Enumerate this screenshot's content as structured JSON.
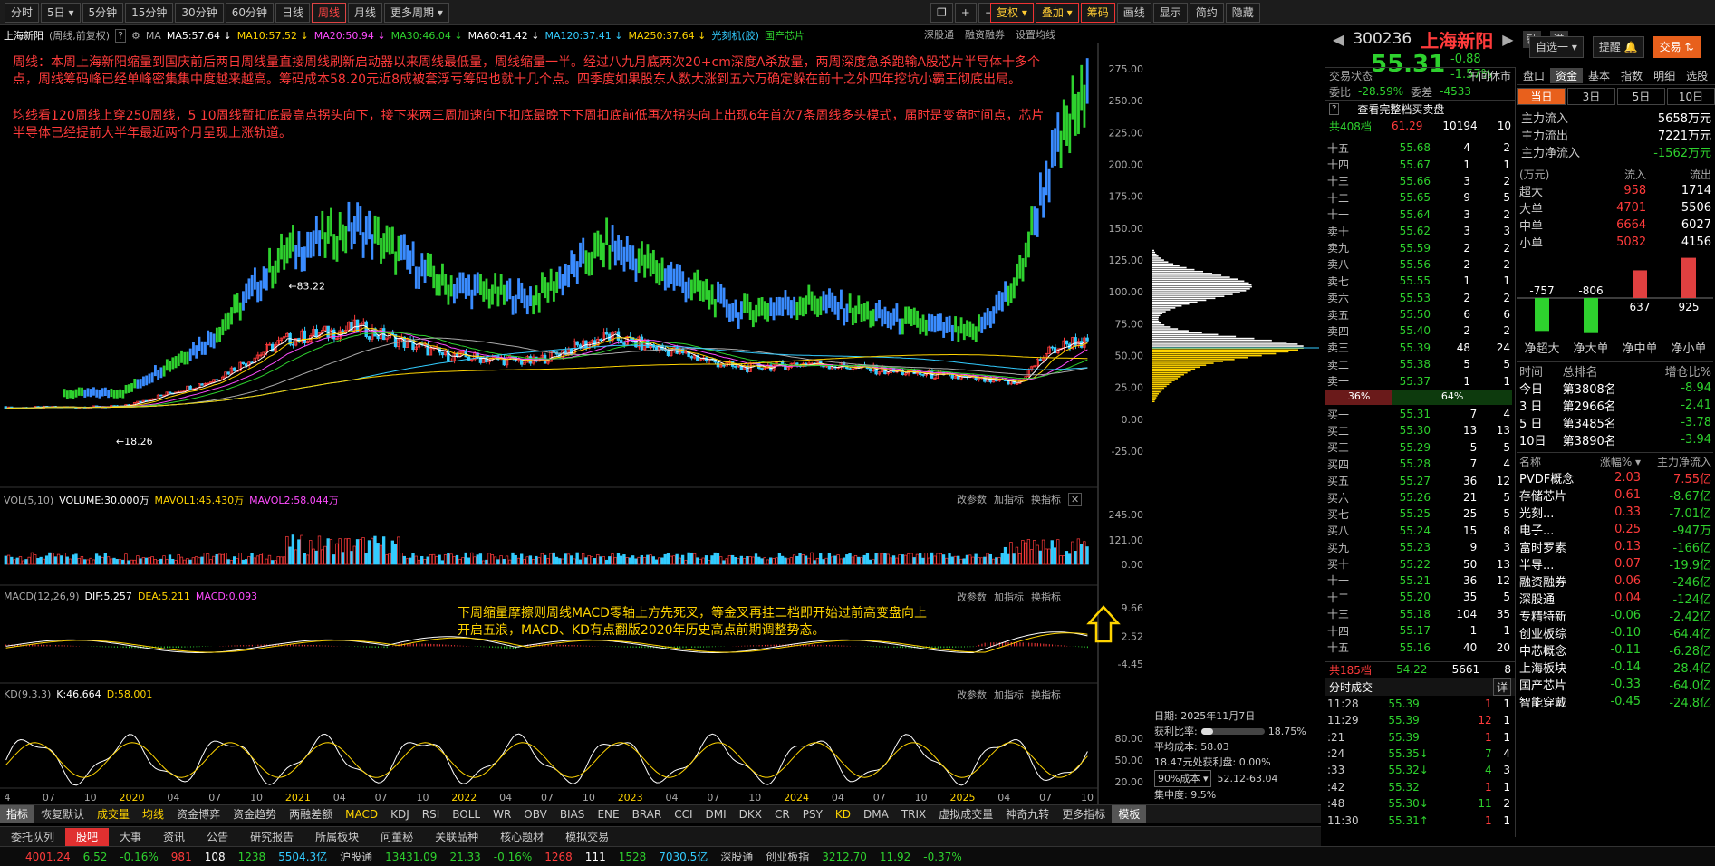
{
  "toolbar": {
    "periods": [
      "分时",
      "5日",
      "5分钟",
      "15分钟",
      "30分钟",
      "60分钟",
      "日线",
      "周线",
      "月线",
      "更多周期"
    ],
    "active_period": "周线",
    "right_buttons": [
      "复权",
      "叠加",
      "筹码",
      "画线",
      "显示",
      "简约",
      "隐藏"
    ]
  },
  "chart_header": {
    "stock": "上海新阳",
    "mode": "(周线,前复权)",
    "ma_label": "MA",
    "ma": [
      {
        "k": "MA5:57.64",
        "c": "#ffffff"
      },
      {
        "k": "MA10:57.52",
        "c": "#ffd400"
      },
      {
        "k": "MA20:50.94",
        "c": "#ff4cff"
      },
      {
        "k": "MA30:46.04",
        "c": "#2ed12e"
      },
      {
        "k": "MA60:41.42",
        "c": "#ffffff"
      },
      {
        "k": "MA120:37.41",
        "c": "#3cf"
      },
      {
        "k": "MA250:37.64",
        "c": "#ffd400"
      }
    ],
    "tags": [
      "光刻机(胶)",
      "国产芯片"
    ],
    "right_tags": [
      "深股通",
      "融资融券",
      "设置均线"
    ]
  },
  "annotation1": "周线：本周上海新阳缩量到国庆前后两日周线量直接周线刷新启动器以来周线最低量，周线缩量一半。经过八九月底两次20+cm深度A杀放量，两周深度急杀跑输A股芯片半导体十多个点，周线筹码峰已经单峰密集集中度越来越高。筹码成本58.20元近8成被套浮亏筹码也就十几个点。四季度如果股东人数大涨到五六万确定躲在前十之外四年挖坑小霸王彻底出局。",
  "annotation2": "均线看120周线上穿250周线，5 10周线暂扣底最高点拐头向下，接下来两三周加速向下扣底最晚下下周扣底前低再次拐头向上出现6年首次7条周线多头模式，届时是变盘时间点，芯片半导体已经提前大半年最近两个月呈现上涨轨道。",
  "annotation3": "下周缩量摩擦则周线MACD零轴上方先死叉，等金叉再挂二档即开始过前高变盘向上开启五浪，MACD、KD有点翻版2020年历史高点前期调整势态。",
  "price_axis": [
    "275.00",
    "250.00",
    "225.00",
    "200.00",
    "175.00",
    "150.00",
    "125.00",
    "100.00",
    "75.00",
    "50.00",
    "25.00",
    "0.00",
    "-25.00"
  ],
  "price_marks": {
    "high": "83.22",
    "low": "18.26"
  },
  "vol": {
    "header": "VOL(5,10)",
    "volume": "VOLUME:30.000万",
    "mavol1": "MAVOL1:45.430万",
    "mavol2": "MAVOL2:58.044万",
    "axis": [
      "245.00",
      "121.00",
      "0.00"
    ],
    "btns": [
      "改参数",
      "加指标",
      "换指标"
    ]
  },
  "macd": {
    "header": "MACD(12,26,9)",
    "dif": "DIF:5.257",
    "dea": "DEA:5.211",
    "macd": "MACD:0.093",
    "axis": [
      "9.66",
      "2.52",
      "-4.45"
    ]
  },
  "kd": {
    "header": "KD(9,3,3)",
    "k": "K:46.664",
    "d": "D:58.001",
    "axis": [
      "80.00",
      "50.00",
      "20.00"
    ]
  },
  "xaxis": [
    "4",
    "07",
    "10",
    "2020",
    "04",
    "07",
    "10",
    "2021",
    "04",
    "07",
    "10",
    "2022",
    "04",
    "07",
    "10",
    "2023",
    "04",
    "07",
    "10",
    "2024",
    "04",
    "07",
    "10",
    "2025",
    "04",
    "07",
    "10"
  ],
  "chip": {
    "date": "日期: 2025年11月7日",
    "ratio_label": "获利比率:",
    "ratio": "18.75%",
    "avg": "平均成本: 58.03",
    "pressure": "18.47元处获利盘: 0.00%",
    "cost_sel": "90%成本",
    "cost_range": "52.12-63.04",
    "conc": "集中度: 9.5%"
  },
  "bottom_tabs": [
    "指标",
    "恢复默认",
    "成交量",
    "均线",
    "资金博弈",
    "资金趋势",
    "两融差额",
    "MACD",
    "KDJ",
    "RSI",
    "BOLL",
    "WR",
    "OBV",
    "BIAS",
    "ENE",
    "BRAR",
    "CCI",
    "DMI",
    "DKX",
    "CR",
    "PSY",
    "KD",
    "DMA",
    "TRIX",
    "虚拟成交量",
    "神奇九转",
    "更多指标",
    "模板"
  ],
  "bottom_tabs2": [
    "委托队列",
    "股吧",
    "大事",
    "资讯",
    "公告",
    "研究报告",
    "所属板块",
    "问董秘",
    "关联品种",
    "核心题材",
    "模拟交易"
  ],
  "status": {
    "a": "4001.24",
    "a2": "6.52",
    "a3": "-0.16%",
    "a4": "981",
    "a5": "108",
    "a6": "1238",
    "a7": "5504.3亿",
    "hgt": "沪股通",
    "b": "13431.09",
    "b2": "21.33",
    "b3": "-0.16%",
    "b4": "1268",
    "b5": "111",
    "b6": "1528",
    "b7": "7030.5亿",
    "sgt": "深股通",
    "c": "创业板指",
    "c2": "3212.70",
    "c3": "11.92",
    "c4": "-0.37%"
  },
  "quote": {
    "code": "300236",
    "name": "上海新阳",
    "badges": [
      "融",
      "港"
    ],
    "price": "55.31",
    "chg": "-0.88",
    "pct": "-1.57%",
    "select_btn": "自选一",
    "remind_btn": "提醒",
    "trade_btn": "交易",
    "state_label": "交易状态",
    "state": "午间休市",
    "wb_label": "委比",
    "wb": "-28.59%",
    "wc_label": "委差",
    "wc": "-4533",
    "all_orders": "查看完整档买卖盘",
    "q408_label": "共408档",
    "q408_p": "61.29",
    "q408_v": "10194",
    "q408_n": "10",
    "sells": [
      [
        "十五",
        "55.68",
        "4",
        "2"
      ],
      [
        "十四",
        "55.67",
        "1",
        "1"
      ],
      [
        "十三",
        "55.66",
        "3",
        "2"
      ],
      [
        "十二",
        "55.65",
        "9",
        "5"
      ],
      [
        "十一",
        "55.64",
        "3",
        "2"
      ],
      [
        "卖十",
        "55.62",
        "3",
        "3"
      ],
      [
        "卖九",
        "55.59",
        "2",
        "2"
      ],
      [
        "卖八",
        "55.56",
        "2",
        "2"
      ],
      [
        "卖七",
        "55.55",
        "1",
        "1"
      ],
      [
        "卖六",
        "55.53",
        "2",
        "2"
      ],
      [
        "卖五",
        "55.50",
        "6",
        "6"
      ],
      [
        "卖四",
        "55.40",
        "2",
        "2"
      ],
      [
        "卖三",
        "55.39",
        "48",
        "24"
      ],
      [
        "卖二",
        "55.38",
        "5",
        "5"
      ],
      [
        "卖一",
        "55.37",
        "1",
        "1"
      ]
    ],
    "ratio_buy": "36%",
    "ratio_sell": "64%",
    "buys": [
      [
        "买一",
        "55.31",
        "7",
        "4"
      ],
      [
        "买二",
        "55.30",
        "13",
        "13"
      ],
      [
        "买三",
        "55.29",
        "5",
        "5"
      ],
      [
        "买四",
        "55.28",
        "7",
        "4"
      ],
      [
        "买五",
        "55.27",
        "36",
        "12"
      ],
      [
        "买六",
        "55.26",
        "21",
        "5"
      ],
      [
        "买七",
        "55.25",
        "25",
        "5"
      ],
      [
        "买八",
        "55.24",
        "15",
        "8"
      ],
      [
        "买九",
        "55.23",
        "9",
        "3"
      ],
      [
        "买十",
        "55.22",
        "50",
        "13"
      ],
      [
        "十一",
        "55.21",
        "36",
        "12"
      ],
      [
        "十二",
        "55.20",
        "35",
        "5"
      ],
      [
        "十三",
        "55.18",
        "104",
        "35"
      ],
      [
        "十四",
        "55.17",
        "1",
        "1"
      ],
      [
        "十五",
        "55.16",
        "40",
        "20"
      ]
    ],
    "q185_label": "共185档",
    "q185_p": "54.22",
    "q185_v": "5661",
    "q185_n": "8",
    "ticks_title": "分时成交",
    "ticks_btn": "详",
    "ticks": [
      [
        "11:28",
        "55.39",
        "1",
        "1",
        "r"
      ],
      [
        "11:29",
        "55.39",
        "12",
        "1",
        "r"
      ],
      [
        ":21",
        "55.39",
        "1",
        "1",
        "r"
      ],
      [
        ":24",
        "55.35↓",
        "7",
        "4",
        "g"
      ],
      [
        ":33",
        "55.32↓",
        "4",
        "3",
        "g"
      ],
      [
        ":42",
        "55.32",
        "1",
        "1",
        "r"
      ],
      [
        ":48",
        "55.30↓",
        "11",
        "2",
        "g"
      ],
      [
        "11:30",
        "55.31↑",
        "1",
        "1",
        "r"
      ]
    ]
  },
  "fund": {
    "tabs": [
      "盘口",
      "资金",
      "基本",
      "指数",
      "明细",
      "选股"
    ],
    "periods": [
      "当日",
      "3日",
      "5日",
      "10日"
    ],
    "flow": [
      [
        "主力流入",
        "5658万元"
      ],
      [
        "主力流出",
        "7221万元"
      ],
      [
        "主力净流入",
        "-1562万元"
      ]
    ],
    "table_head": [
      "(万元)",
      "流入",
      "流出"
    ],
    "table": [
      [
        "超大",
        "958",
        "1714"
      ],
      [
        "大单",
        "4701",
        "5506"
      ],
      [
        "中单",
        "6664",
        "6027"
      ],
      [
        "小单",
        "5082",
        "4156"
      ]
    ],
    "bars": [
      {
        "label": "净超大",
        "v": -757
      },
      {
        "label": "净大单",
        "v": -806
      },
      {
        "label": "净中单",
        "v": 637
      },
      {
        "label": "净小单",
        "v": 925
      }
    ],
    "rank_head": [
      "时间",
      "总排名",
      "增仓比%"
    ],
    "rank": [
      [
        "今日",
        "第3808名",
        "-8.94"
      ],
      [
        "3 日",
        "第2966名",
        "-2.41"
      ],
      [
        "5 日",
        "第3485名",
        "-3.78"
      ],
      [
        "10日",
        "第3890名",
        "-3.94"
      ]
    ],
    "sector_head": [
      "名称",
      "涨幅%",
      "主力净流入"
    ],
    "sectors": [
      [
        "PVDF概念",
        "2.03",
        "7.55亿"
      ],
      [
        "存储芯片",
        "0.61",
        "-8.67亿"
      ],
      [
        "光刻...",
        "0.33",
        "-7.01亿"
      ],
      [
        "电子...",
        "0.25",
        "-947万"
      ],
      [
        "富时罗素",
        "0.13",
        "-166亿"
      ],
      [
        "半导...",
        "0.07",
        "-19.9亿"
      ],
      [
        "融资融券",
        "0.06",
        "-246亿"
      ],
      [
        "深股通",
        "0.04",
        "-124亿"
      ],
      [
        "专精特新",
        "-0.06",
        "-2.42亿"
      ],
      [
        "创业板综",
        "-0.10",
        "-64.4亿"
      ],
      [
        "中芯概念",
        "-0.11",
        "-6.28亿"
      ],
      [
        "上海板块",
        "-0.14",
        "-28.4亿"
      ],
      [
        "国产芯片",
        "-0.33",
        "-64.0亿"
      ],
      [
        "智能穿戴",
        "-0.45",
        "-24.8亿"
      ]
    ]
  }
}
